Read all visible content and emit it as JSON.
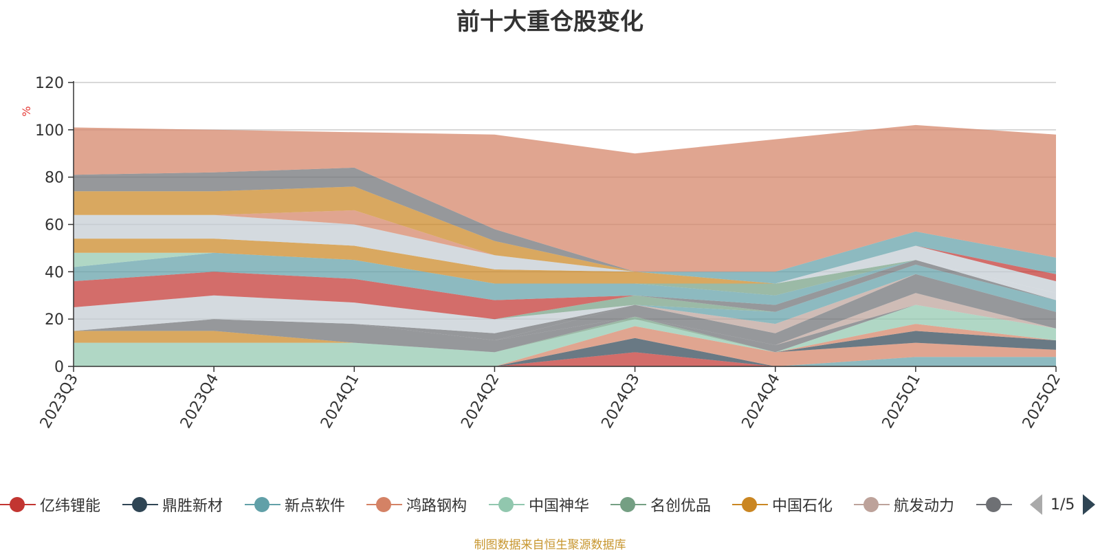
{
  "title": "前十大重仓股变化",
  "source_note": "制图数据来自恒生聚源数据库",
  "legend": {
    "items": [
      {
        "name": "亿纬锂能",
        "color": "#c23531"
      },
      {
        "name": "鼎胜新材",
        "color": "#2f4554"
      },
      {
        "name": "新点软件",
        "color": "#61a0a8"
      },
      {
        "name": "鸿路钢构",
        "color": "#d48265"
      },
      {
        "name": "中国神华",
        "color": "#91c7ae"
      },
      {
        "name": "名创优品",
        "color": "#749f83"
      },
      {
        "name": "中国石化",
        "color": "#ca8622"
      },
      {
        "name": "航发动力",
        "color": "#bda29a"
      },
      {
        "name": "",
        "color": "#6e7074"
      }
    ],
    "page_text": "1/5"
  },
  "chart_data": {
    "type": "area",
    "stacked": true,
    "x": [
      "2023Q3",
      "2023Q4",
      "2024Q1",
      "2024Q2",
      "2024Q3",
      "2024Q4",
      "2025Q1",
      "2025Q2"
    ],
    "ylabel": "%",
    "ylim": [
      0,
      120
    ],
    "yticks": [
      0,
      20,
      40,
      60,
      80,
      100,
      120
    ],
    "grid": true,
    "layers": [
      {
        "color": "#c23531",
        "values": [
          0,
          0,
          0,
          0,
          6,
          0,
          0,
          0
        ]
      },
      {
        "color": "#2f4554",
        "values": [
          0,
          0,
          0,
          0,
          6,
          0,
          0,
          0
        ]
      },
      {
        "color": "#61a0a8",
        "values": [
          0,
          0,
          0,
          0,
          0,
          0,
          4,
          4
        ]
      },
      {
        "color": "#d48265",
        "values": [
          0,
          0,
          0,
          0,
          5,
          6,
          6,
          3
        ]
      },
      {
        "color": "#2f4554",
        "values": [
          0,
          0,
          0,
          0,
          0,
          0,
          5,
          4
        ]
      },
      {
        "color": "#91c7ae",
        "values": [
          10,
          10,
          10,
          6,
          3,
          0,
          0,
          0
        ]
      },
      {
        "color": "#d48265",
        "values": [
          0,
          0,
          0,
          0,
          0,
          0,
          3,
          0
        ]
      },
      {
        "color": "#749f83",
        "values": [
          0,
          0,
          0,
          0,
          1,
          0,
          0,
          0
        ]
      },
      {
        "color": "#91c7ae",
        "values": [
          0,
          0,
          0,
          0,
          0,
          0,
          8,
          5
        ]
      },
      {
        "color": "#ca8622",
        "values": [
          5,
          5,
          0,
          0,
          0,
          0,
          0,
          0
        ]
      },
      {
        "color": "#6e7074",
        "values": [
          0,
          5,
          8,
          5,
          0,
          3,
          0,
          0
        ]
      },
      {
        "color": "#bda29a",
        "values": [
          0,
          0,
          0,
          0,
          0,
          0,
          5,
          0
        ]
      },
      {
        "color": "#6e7074",
        "values": [
          0,
          0,
          0,
          0,
          5,
          5,
          8,
          7
        ]
      },
      {
        "color": "#6e7074",
        "values": [
          0,
          0,
          0,
          3,
          0,
          0,
          0,
          0
        ]
      },
      {
        "color": "#bda29a",
        "values": [
          0,
          0,
          0,
          0,
          0,
          4,
          0,
          0
        ]
      },
      {
        "color": "#61a0a8",
        "values": [
          0,
          0,
          0,
          0,
          0,
          5,
          4,
          5
        ]
      },
      {
        "color": "#c4ccd3",
        "values": [
          10,
          10,
          9,
          6,
          0,
          0,
          0,
          0
        ]
      },
      {
        "color": "#749f83",
        "values": [
          0,
          0,
          0,
          0,
          4,
          0,
          0,
          0
        ]
      },
      {
        "color": "#6e7074",
        "values": [
          0,
          0,
          0,
          0,
          0,
          3,
          2,
          0
        ]
      },
      {
        "color": "#c23531",
        "values": [
          11,
          10,
          10,
          8,
          0,
          0,
          0,
          0
        ]
      },
      {
        "color": "#61a0a8",
        "values": [
          6,
          8,
          8,
          7,
          5,
          4,
          0,
          0
        ]
      },
      {
        "color": "#91c7ae",
        "values": [
          6,
          0,
          0,
          0,
          0,
          0,
          0,
          0
        ]
      },
      {
        "color": "#749f83",
        "values": [
          0,
          0,
          0,
          0,
          0,
          5,
          0,
          0
        ]
      },
      {
        "color": "#c4ccd3",
        "values": [
          0,
          0,
          0,
          0,
          0,
          0,
          0,
          3
        ]
      },
      {
        "color": "#ca8622",
        "values": [
          6,
          6,
          6,
          6,
          5,
          0,
          0,
          0
        ]
      },
      {
        "color": "#c4ccd3",
        "values": [
          10,
          10,
          9,
          6,
          0,
          0,
          6,
          5
        ]
      },
      {
        "color": "#d48265",
        "values": [
          0,
          0,
          6,
          0,
          0,
          0,
          0,
          0
        ]
      },
      {
        "color": "#ca8622",
        "values": [
          10,
          10,
          10,
          6,
          0,
          0,
          0,
          0
        ]
      },
      {
        "color": "#6e7074",
        "values": [
          7,
          8,
          8,
          5,
          0,
          0,
          0,
          0
        ]
      },
      {
        "color": "#c23531",
        "values": [
          0,
          0,
          0,
          0,
          0,
          0,
          0,
          3
        ]
      },
      {
        "color": "#61a0a8",
        "values": [
          0,
          0,
          0,
          0,
          0,
          5,
          6,
          7
        ]
      },
      {
        "color": "#d48265",
        "values": [
          20,
          18,
          15,
          40,
          50,
          56,
          45,
          52
        ]
      }
    ]
  }
}
